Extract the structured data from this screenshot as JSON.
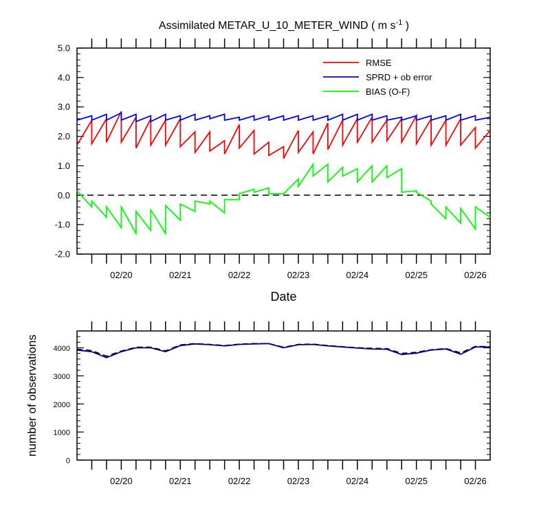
{
  "title": {
    "main": "Assimilated METAR_U_10_METER_WIND ( m s",
    "sup": "-1",
    "tail": " )"
  },
  "chart_data": [
    {
      "type": "line",
      "xlabel": "Date",
      "ylabel": "",
      "ylim": [
        -2.0,
        5.0
      ],
      "xlim": [
        0,
        70
      ],
      "yticks": [
        "-2.0",
        "-1.0",
        "0.0",
        "1.0",
        "2.0",
        "3.0",
        "4.0",
        "5.0"
      ],
      "ytick_values": [
        -2,
        -1,
        0,
        1,
        2,
        3,
        4,
        5
      ],
      "xtick_labels": [
        "02/20",
        "02/21",
        "02/22",
        "02/23",
        "02/24",
        "02/25",
        "02/26"
      ],
      "xtick_values": [
        7.5,
        17.5,
        27.5,
        37.5,
        47.5,
        57.5,
        67.5
      ],
      "zero_line": "dashed",
      "legend": {
        "placement": "top-right"
      },
      "series": [
        {
          "name": "RMSE",
          "color": "#ff0000",
          "x": [
            0,
            2.5,
            2.5,
            5,
            5,
            7.5,
            7.5,
            10,
            10,
            12.5,
            12.5,
            15,
            15,
            17.5,
            17.5,
            20,
            20,
            22.5,
            22.5,
            25,
            25,
            27.5,
            27.5,
            30,
            30,
            32.5,
            32.5,
            35,
            35,
            37.5,
            37.5,
            40,
            40,
            42.5,
            42.5,
            45,
            45,
            47.5,
            47.5,
            50,
            50,
            52.5,
            52.5,
            55,
            55,
            57.5,
            57.5,
            60,
            60,
            62.5,
            62.5,
            65,
            65,
            67.5,
            67.5,
            70
          ],
          "values": [
            1.7,
            2.55,
            1.75,
            2.6,
            1.8,
            2.85,
            1.8,
            2.65,
            1.6,
            2.6,
            1.7,
            2.55,
            1.7,
            2.6,
            1.65,
            2.15,
            1.45,
            2.15,
            1.5,
            1.85,
            1.4,
            2.4,
            1.6,
            2.2,
            1.4,
            1.8,
            1.35,
            1.65,
            1.25,
            2.2,
            1.45,
            2.15,
            1.4,
            2.45,
            1.55,
            2.55,
            1.7,
            2.6,
            1.8,
            2.65,
            1.8,
            2.55,
            1.85,
            2.6,
            1.8,
            2.7,
            1.75,
            2.6,
            1.7,
            2.55,
            1.7,
            2.6,
            1.7,
            2.3,
            1.6,
            2.2
          ]
        },
        {
          "name": "SPRD + ob error",
          "color": "#0000ff",
          "x": [
            0,
            2.5,
            2.5,
            5,
            5,
            7.5,
            7.5,
            10,
            10,
            12.5,
            12.5,
            15,
            15,
            17.5,
            17.5,
            20,
            20,
            22.5,
            22.5,
            25,
            25,
            27.5,
            27.5,
            30,
            30,
            32.5,
            32.5,
            35,
            35,
            37.5,
            37.5,
            40,
            40,
            42.5,
            42.5,
            45,
            45,
            47.5,
            47.5,
            50,
            50,
            52.5,
            52.5,
            55,
            55,
            57.5,
            57.5,
            60,
            60,
            62.5,
            62.5,
            65,
            65,
            67.5,
            67.5,
            70
          ],
          "values": [
            2.55,
            2.7,
            2.55,
            2.75,
            2.55,
            2.8,
            2.55,
            2.75,
            2.5,
            2.7,
            2.5,
            2.75,
            2.55,
            2.7,
            2.55,
            2.75,
            2.55,
            2.7,
            2.6,
            2.75,
            2.55,
            2.65,
            2.55,
            2.7,
            2.55,
            2.7,
            2.55,
            2.7,
            2.55,
            2.7,
            2.55,
            2.7,
            2.55,
            2.7,
            2.55,
            2.75,
            2.55,
            2.75,
            2.55,
            2.75,
            2.55,
            2.7,
            2.55,
            2.65,
            2.55,
            2.7,
            2.55,
            2.7,
            2.55,
            2.7,
            2.55,
            2.75,
            2.55,
            2.7,
            2.55,
            2.65
          ]
        },
        {
          "name": "BIAS (O-F)",
          "color": "#00ff00",
          "x": [
            0,
            2.5,
            2.5,
            5,
            5,
            7.5,
            7.5,
            10,
            10,
            12.5,
            12.5,
            15,
            15,
            17.5,
            17.5,
            20,
            20,
            22.5,
            22.5,
            25,
            25,
            27.5,
            27.5,
            30,
            30,
            32.5,
            32.5,
            35,
            35,
            37.5,
            37.5,
            40,
            40,
            42.5,
            42.5,
            45,
            45,
            47.5,
            47.5,
            50,
            50,
            52.5,
            52.5,
            55,
            55,
            57.5,
            57.5,
            60,
            60,
            62.5,
            62.5,
            65,
            65,
            67.5,
            67.5,
            70
          ],
          "values": [
            0.15,
            -0.4,
            -0.2,
            -0.75,
            -0.4,
            -1.1,
            -0.4,
            -1.3,
            -0.55,
            -1.2,
            -0.5,
            -1.3,
            -0.35,
            -0.85,
            -0.3,
            -0.55,
            -0.2,
            -0.3,
            -0.2,
            -0.6,
            -0.15,
            -0.15,
            0.05,
            0.2,
            0.1,
            0.25,
            0.05,
            0.05,
            0.05,
            0.55,
            0.3,
            1.05,
            0.65,
            1.05,
            0.45,
            0.95,
            0.65,
            0.9,
            0.45,
            1.0,
            0.45,
            1.0,
            0.6,
            0.9,
            0.1,
            0.15,
            0.1,
            -0.2,
            -0.3,
            -0.8,
            -0.4,
            -0.95,
            -0.45,
            -1.15,
            -0.4,
            -0.75
          ]
        }
      ]
    },
    {
      "type": "line",
      "xlabel": "",
      "ylabel": "number of observations",
      "ylim": [
        0,
        4600
      ],
      "xlim": [
        0,
        70
      ],
      "yticks": [
        "0",
        "1000",
        "2000",
        "3000",
        "4000"
      ],
      "ytick_values": [
        0,
        1000,
        2000,
        3000,
        4000
      ],
      "xtick_labels": [
        "02/20",
        "02/21",
        "02/22",
        "02/23",
        "02/24",
        "02/25",
        "02/26"
      ],
      "xtick_values": [
        7.5,
        17.5,
        27.5,
        37.5,
        47.5,
        57.5,
        67.5
      ],
      "series": [
        {
          "style": "dashed",
          "color": "#000000",
          "x": [
            0,
            2.5,
            5,
            7.5,
            10,
            12.5,
            15,
            17.5,
            20,
            22.5,
            25,
            27.5,
            30,
            32.5,
            35,
            37.5,
            40,
            42.5,
            45,
            47.5,
            50,
            52.5,
            55,
            57.5,
            60,
            62.5,
            65,
            67.5,
            70
          ],
          "values": [
            3950,
            3900,
            3700,
            3880,
            4020,
            4020,
            3890,
            4100,
            4150,
            4120,
            4080,
            4130,
            4150,
            4150,
            4020,
            4120,
            4130,
            4080,
            4040,
            4000,
            3980,
            3970,
            3800,
            3840,
            3930,
            3970,
            3820,
            4050,
            4040
          ]
        },
        {
          "style": "solid",
          "color": "#00008b",
          "x": [
            0,
            2.5,
            5,
            7.5,
            10,
            12.5,
            15,
            17.5,
            20,
            22.5,
            25,
            27.5,
            30,
            32.5,
            35,
            37.5,
            40,
            42.5,
            45,
            47.5,
            50,
            52.5,
            55,
            57.5,
            60,
            62.5,
            65,
            67.5,
            70
          ],
          "values": [
            3920,
            3860,
            3650,
            3860,
            4000,
            4000,
            3860,
            4080,
            4140,
            4110,
            4070,
            4120,
            4140,
            4150,
            4000,
            4110,
            4120,
            4070,
            4030,
            3990,
            3960,
            3950,
            3760,
            3810,
            3920,
            3960,
            3770,
            4030,
            4030
          ]
        }
      ]
    }
  ]
}
